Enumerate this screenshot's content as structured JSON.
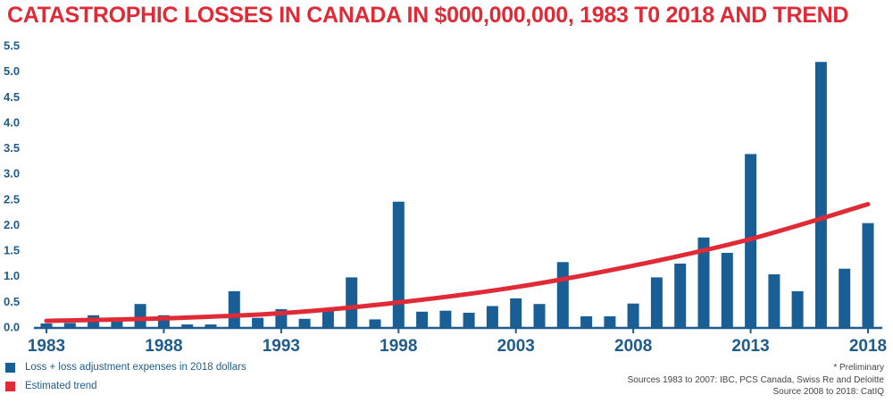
{
  "title": "CATASTROPHIC LOSSES IN CANADA IN $000,000,000, 1983 T0 2018 AND TREND",
  "colors": {
    "bar": "#1a5e96",
    "trend": "#e02a36",
    "title": "#e02a36",
    "axis": "#1d5c8c"
  },
  "legend": {
    "bars_label": "Loss + loss adjustment expenses in 2018 dollars",
    "trend_label": "Estimated trend"
  },
  "notes": {
    "preliminary": "* Preliminary",
    "sources_1": "Sources 1983 to 2007: IBC, PCS Canada, Swiss Re and Deloitte",
    "sources_2": "Source 2008 to 2018: CatIQ"
  },
  "chart_data": {
    "type": "bar",
    "x": [
      1983,
      1984,
      1985,
      1986,
      1987,
      1988,
      1989,
      1990,
      1991,
      1992,
      1993,
      1994,
      1995,
      1996,
      1997,
      1998,
      1999,
      2000,
      2001,
      2002,
      2003,
      2004,
      2005,
      2006,
      2007,
      2008,
      2009,
      2010,
      2011,
      2012,
      2013,
      2014,
      2015,
      2016,
      2017,
      2018
    ],
    "series": [
      {
        "name": "Loss + loss adjustment expenses in 2018 dollars",
        "values": [
          0.07,
          0.08,
          0.23,
          0.12,
          0.45,
          0.23,
          0.05,
          0.05,
          0.7,
          0.18,
          0.35,
          0.16,
          0.35,
          0.97,
          0.15,
          2.45,
          0.3,
          0.32,
          0.28,
          0.41,
          0.56,
          0.45,
          1.27,
          0.21,
          0.21,
          0.46,
          0.97,
          1.24,
          1.75,
          1.45,
          3.38,
          1.03,
          0.7,
          5.18,
          1.14,
          2.03
        ]
      },
      {
        "name": "Estimated trend",
        "type": "line",
        "x": [
          1983,
          1988,
          1993,
          1998,
          2003,
          2008,
          2013,
          2018
        ],
        "values": [
          0.12,
          0.17,
          0.27,
          0.48,
          0.78,
          1.2,
          1.72,
          2.4
        ]
      }
    ],
    "xticks": [
      "1983",
      "1988",
      "1993",
      "1998",
      "2003",
      "2008",
      "2013",
      "2018"
    ],
    "yticks": [
      "0.0",
      "0.5",
      "1.0",
      "1.5",
      "2.0",
      "2.5",
      "3.0",
      "3.5",
      "4.0",
      "4.5",
      "5.0",
      "5.5"
    ],
    "ylim": [
      0,
      5.5
    ],
    "grid": false,
    "legend_position": "bottom-left"
  }
}
